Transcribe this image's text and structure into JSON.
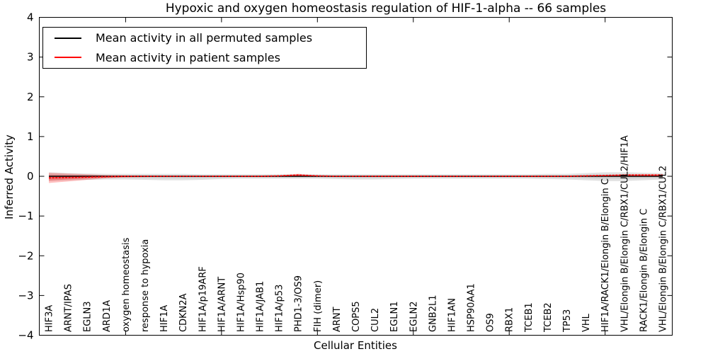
{
  "chart_data": {
    "type": "line",
    "title": "Hypoxic and oxygen homeostasis regulation of HIF-1-alpha -- 66 samples",
    "xlabel": "Cellular Entities",
    "ylabel": "Inferred Activity",
    "ylim": [
      -4,
      4
    ],
    "yticks": [
      -4,
      -3,
      -2,
      -1,
      0,
      1,
      2,
      3,
      4
    ],
    "ytick_labels": [
      "−4",
      "−3",
      "−2",
      "−1",
      "0",
      "1",
      "2",
      "3",
      "4"
    ],
    "xtick_indices": [
      4,
      9,
      14,
      19,
      24,
      29
    ],
    "grid": false,
    "legend_position": "upper left",
    "categories": [
      "HIF3A",
      "ARNT/IPAS",
      "EGLN3",
      "ARD1A",
      "oxygen homeostasis",
      "response to hypoxia",
      "HIF1A",
      "CDKN2A",
      "HIF1A/p19ARF",
      "HIF1A/ARNT",
      "HIF1A/Hsp90",
      "HIF1A/JAB1",
      "HIF1A/p53",
      "PHD1-3/OS9",
      "FIH (dimer)",
      "ARNT",
      "COPS5",
      "CUL2",
      "EGLN1",
      "EGLN2",
      "GNB2L1",
      "HIF1AN",
      "HSP90AA1",
      "OS9",
      "RBX1",
      "TCEB1",
      "TCEB2",
      "TP53",
      "VHL",
      "HIF1A/RACK1/Elongin B/Elongin C",
      "VHL/Elongin B/Elongin C/RBX1/CUL2/HIF1A",
      "RACK1/Elongin B/Elongin C",
      "VHL/Elongin B/Elongin C/RBX1/CUL2"
    ],
    "series": [
      {
        "name": "Mean activity in all permuted samples",
        "color": "#000000",
        "values": [
          0,
          0,
          0,
          0,
          0,
          0,
          0,
          0,
          0,
          0,
          0,
          0,
          0,
          0,
          0,
          0,
          0,
          0,
          0,
          0,
          0,
          0,
          0,
          0,
          0,
          0,
          0,
          0,
          0,
          0,
          0,
          0,
          0
        ]
      },
      {
        "name": "Mean activity in patient samples",
        "color": "#ff0000",
        "values": [
          -0.04,
          -0.03,
          -0.02,
          -0.01,
          0,
          0,
          0,
          0,
          0,
          0,
          0,
          0,
          0.01,
          0.03,
          0.01,
          0,
          0,
          0,
          0,
          0,
          0,
          0,
          0,
          0,
          0,
          0,
          0,
          0,
          0.01,
          0.02,
          0.03,
          0.03,
          0.03
        ]
      }
    ],
    "bands": [
      {
        "name": "permuted-sample-range",
        "series": 0,
        "color": "#aaaaaa",
        "opacity": 0.35,
        "upper": [
          0.1,
          0.08,
          0.07,
          0.06,
          0.06,
          0.06,
          0.06,
          0.06,
          0.05,
          0.05,
          0.05,
          0.05,
          0.05,
          0.06,
          0.05,
          0.05,
          0.05,
          0.05,
          0.05,
          0.05,
          0.05,
          0.05,
          0.05,
          0.05,
          0.05,
          0.05,
          0.06,
          0.06,
          0.08,
          0.1,
          0.1,
          0.09,
          0.08
        ],
        "lower": [
          -0.12,
          -0.1,
          -0.09,
          -0.08,
          -0.08,
          -0.09,
          -0.1,
          -0.1,
          -0.09,
          -0.07,
          -0.06,
          -0.06,
          -0.06,
          -0.06,
          -0.06,
          -0.07,
          -0.08,
          -0.08,
          -0.07,
          -0.06,
          -0.06,
          -0.06,
          -0.06,
          -0.06,
          -0.06,
          -0.06,
          -0.07,
          -0.08,
          -0.1,
          -0.12,
          -0.12,
          -0.1,
          -0.08
        ]
      },
      {
        "name": "patient-sample-range",
        "series": 1,
        "color": "#ff0000",
        "opacity": 0.25,
        "upper": [
          0.09,
          0.07,
          0.05,
          0.03,
          0.02,
          0.01,
          0.01,
          0.01,
          0.01,
          0.01,
          0.01,
          0.01,
          0.02,
          0.06,
          0.02,
          0.01,
          0.01,
          0.01,
          0.01,
          0.01,
          0.01,
          0.01,
          0.01,
          0.01,
          0.01,
          0.01,
          0.01,
          0.01,
          0.02,
          0.03,
          0.05,
          0.05,
          0.05
        ],
        "lower": [
          -0.17,
          -0.13,
          -0.09,
          -0.05,
          -0.03,
          -0.02,
          -0.01,
          -0.01,
          -0.01,
          -0.01,
          -0.01,
          -0.01,
          -0.01,
          -0.01,
          -0.01,
          -0.01,
          -0.01,
          -0.01,
          -0.01,
          -0.01,
          -0.01,
          -0.01,
          -0.01,
          -0.01,
          -0.01,
          -0.01,
          -0.01,
          -0.01,
          -0.01,
          -0.01,
          -0.01,
          -0.01,
          -0.01
        ]
      }
    ]
  }
}
